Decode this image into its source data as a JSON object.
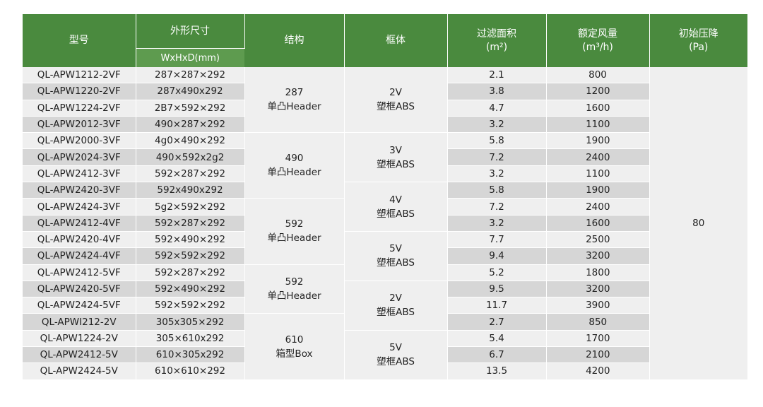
{
  "headers": {
    "model": "型号",
    "dimensions": "外形尺寸",
    "dimensions_sub": "WxHxD(mm)",
    "structure": "结构",
    "frame": "框体",
    "area": "过滤面积\n(m²)",
    "airflow": "额定风量\n(m³/h)",
    "pressure": "初始压降\n(Pa)"
  },
  "rows": [
    {
      "model": "QL-APW1212-2VF",
      "dims": "287×287×292",
      "area": "2.1",
      "airflow": "800"
    },
    {
      "model": "QL-APW1220-2VF",
      "dims": "287x490x292",
      "area": "3.8",
      "airflow": "1200"
    },
    {
      "model": "QL-APW1224-2VF",
      "dims": "2B7×592×292",
      "area": "4.7",
      "airflow": "1600"
    },
    {
      "model": "QL-APW2012-3VF",
      "dims": "490×287×292",
      "area": "3.2",
      "airflow": "1100"
    },
    {
      "model": "QL-APW2000-3VF",
      "dims": "4g0×490×292",
      "area": "5.8",
      "airflow": "1900"
    },
    {
      "model": "QL-APW2024-3VF",
      "dims": "490×592x2g2",
      "area": "7.2",
      "airflow": "2400"
    },
    {
      "model": "QL-APW2412-3VF",
      "dims": "592×287×292",
      "area": "3.2",
      "airflow": "1100"
    },
    {
      "model": "QL-APW2420-3VF",
      "dims": "592x490x292",
      "area": "5.8",
      "airflow": "1900"
    },
    {
      "model": "QL-APW2424-3VF",
      "dims": "5g2×592×292",
      "area": "7.2",
      "airflow": "2400"
    },
    {
      "model": "QL-APW2412-4VF",
      "dims": "592×287×292",
      "area": "3.2",
      "airflow": "1600"
    },
    {
      "model": "QL-APW2420-4VF",
      "dims": "592×490×292",
      "area": "7.7",
      "airflow": "2500"
    },
    {
      "model": "QL-APW2424-4VF",
      "dims": "592×592×292",
      "area": "9.4",
      "airflow": "3200"
    },
    {
      "model": "QL-APW2412-5VF",
      "dims": "592×287×292",
      "area": "5.2",
      "airflow": "1800"
    },
    {
      "model": "QL-APW2420-5VF",
      "dims": "592×490×292",
      "area": "9.5",
      "airflow": "3200"
    },
    {
      "model": "QL-APW2424-5VF",
      "dims": "592×592×292",
      "area": "11.7",
      "airflow": "3900"
    },
    {
      "model": "QL-APWI212-2V",
      "dims": "305x305×292",
      "area": "2.7",
      "airflow": "850"
    },
    {
      "model": "QL-APW1224-2V",
      "dims": "305×610x292",
      "area": "5.4",
      "airflow": "1700"
    },
    {
      "model": "QL-APW2412-5V",
      "dims": "610×305x292",
      "area": "6.7",
      "airflow": "2100"
    },
    {
      "model": "QL-APW2424-5V",
      "dims": "610×610×292",
      "area": "13.5",
      "airflow": "4200"
    }
  ],
  "structure_groups": [
    {
      "start": 0,
      "span": 4,
      "text": "287\n单凸Header"
    },
    {
      "start": 4,
      "span": 4,
      "text": "490\n单凸Header"
    },
    {
      "start": 8,
      "span": 4,
      "text": "592\n单凸Header"
    },
    {
      "start": 12,
      "span": 3,
      "text": "592\n单凸Header"
    },
    {
      "start": 15,
      "span": 4,
      "text": "610\n箱型Box"
    }
  ],
  "frame_groups": [
    {
      "start": 0,
      "span": 4,
      "text": "2V\n塑框ABS"
    },
    {
      "start": 4,
      "span": 3,
      "text": "3V\n塑框ABS"
    },
    {
      "start": 7,
      "span": 3,
      "text": "4V\n塑框ABS"
    },
    {
      "start": 10,
      "span": 3,
      "text": "5V\n塑框ABS"
    },
    {
      "start": 13,
      "span": 3,
      "text": "2V\n塑框ABS"
    },
    {
      "start": 16,
      "span": 3,
      "text": "5V\n塑框ABS"
    }
  ],
  "pressure_value": "80",
  "colors": {
    "header_green": "#4a8a3e",
    "row_dark": "#d6d6d6",
    "row_light": "#efefef"
  }
}
